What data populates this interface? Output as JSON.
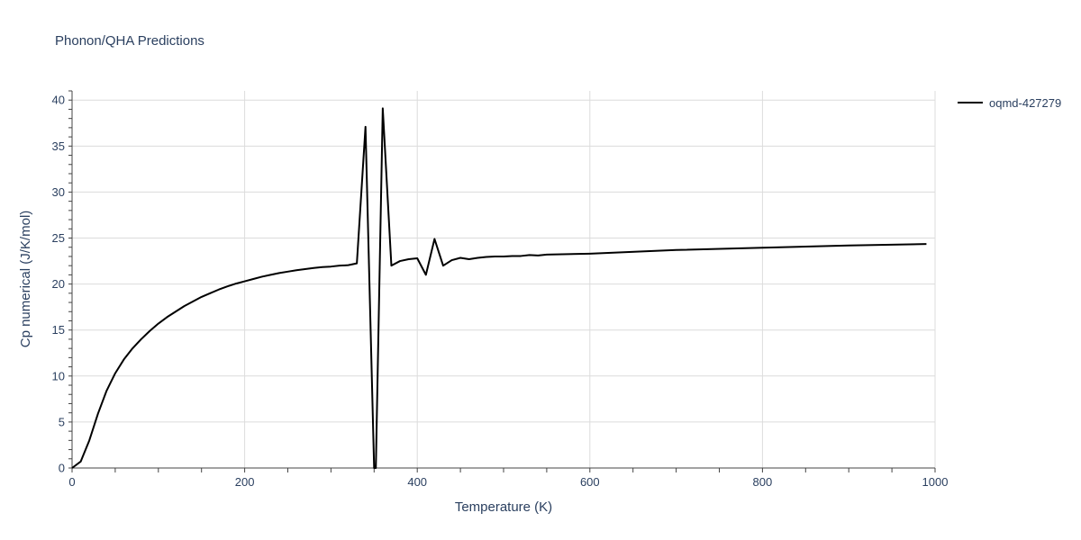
{
  "chart_data": {
    "type": "line",
    "title": "Phonon/QHA Predictions",
    "xlabel": "Temperature (K)",
    "ylabel": "Cp numerical (J/K/mol)",
    "xlim": [
      0,
      1000
    ],
    "ylim": [
      0,
      41
    ],
    "xticks": [
      0,
      200,
      400,
      600,
      800,
      1000
    ],
    "yticks": [
      0,
      5,
      10,
      15,
      20,
      25,
      30,
      35,
      40
    ],
    "grid": true,
    "legend_position": "top-right",
    "colors": {
      "line": "#000000",
      "text": "#2a3f5f",
      "grid": "#dcdcdc"
    },
    "series": [
      {
        "name": "oqmd-427279",
        "x": [
          0,
          10,
          20,
          30,
          40,
          50,
          60,
          70,
          80,
          90,
          100,
          110,
          120,
          130,
          140,
          150,
          160,
          170,
          180,
          190,
          200,
          210,
          220,
          230,
          240,
          250,
          260,
          270,
          280,
          290,
          300,
          310,
          320,
          330,
          340,
          350,
          352,
          360,
          370,
          380,
          390,
          400,
          410,
          420,
          430,
          440,
          450,
          460,
          470,
          480,
          490,
          500,
          510,
          520,
          530,
          540,
          550,
          600,
          700,
          800,
          900,
          990
        ],
        "y": [
          0,
          0.7,
          3.0,
          5.9,
          8.4,
          10.3,
          11.8,
          13.0,
          14.0,
          14.9,
          15.7,
          16.4,
          17.0,
          17.6,
          18.1,
          18.6,
          19.0,
          19.4,
          19.75,
          20.05,
          20.3,
          20.55,
          20.8,
          21.0,
          21.2,
          21.35,
          21.5,
          21.62,
          21.75,
          21.85,
          21.9,
          22.0,
          22.05,
          22.25,
          37.1,
          0,
          0,
          39.1,
          22.0,
          22.5,
          22.7,
          22.8,
          21.0,
          24.9,
          22.0,
          22.6,
          22.85,
          22.7,
          22.85,
          22.95,
          23.0,
          23.0,
          23.05,
          23.05,
          23.15,
          23.1,
          23.2,
          23.3,
          23.7,
          23.95,
          24.2,
          24.35
        ]
      }
    ]
  }
}
